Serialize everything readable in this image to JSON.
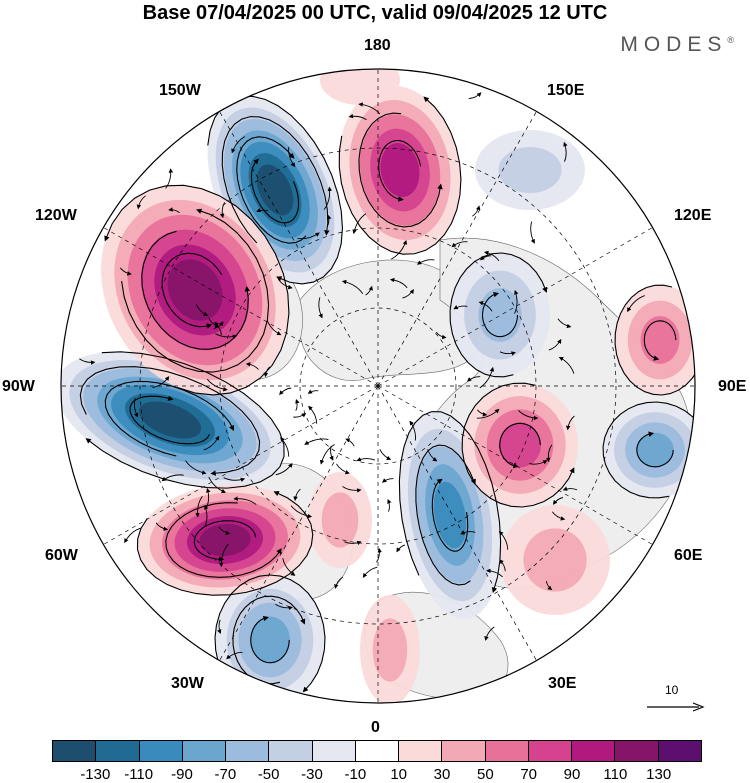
{
  "title": "Base 07/04/2025 00 UTC, valid 09/04/2025 12 UTC",
  "brand": "MODES",
  "brand_mark": "®",
  "longitude_labels": {
    "lon_180": "180",
    "lon_150e": "150E",
    "lon_120e": "120E",
    "lon_90e": "90E",
    "lon_60e": "60E",
    "lon_30e": "30E",
    "lon_0": "0",
    "lon_30w": "30W",
    "lon_60w": "60W",
    "lon_90w": "90W",
    "lon_120w": "120W",
    "lon_150w": "150W"
  },
  "vector_reference": "10",
  "colorbar": {
    "ticks": [
      "-130",
      "-110",
      "-90",
      "-70",
      "-50",
      "-30",
      "-10",
      "10",
      "30",
      "50",
      "70",
      "90",
      "110",
      "130"
    ],
    "colors": [
      "#1d4e6e",
      "#1f6b94",
      "#3a8bbd",
      "#6ba6cf",
      "#9cbcdd",
      "#c3cfe3",
      "#e4e6f0",
      "#ffffff",
      "#fbdada",
      "#f3a9b5",
      "#e8719a",
      "#d5428e",
      "#b0197e",
      "#861569",
      "#5c0f6e"
    ]
  },
  "map_legend": {
    "positive_colors": [
      "#fbdada",
      "#f3a9b5",
      "#e8719a",
      "#d5428e",
      "#b0197e",
      "#861569"
    ],
    "negative_colors": [
      "#e4e6f0",
      "#c3cfe3",
      "#9cbcdd",
      "#6ba6cf",
      "#3a8bbd",
      "#1f6b94",
      "#1d4e6e"
    ],
    "land_color": "#eeeeee"
  }
}
